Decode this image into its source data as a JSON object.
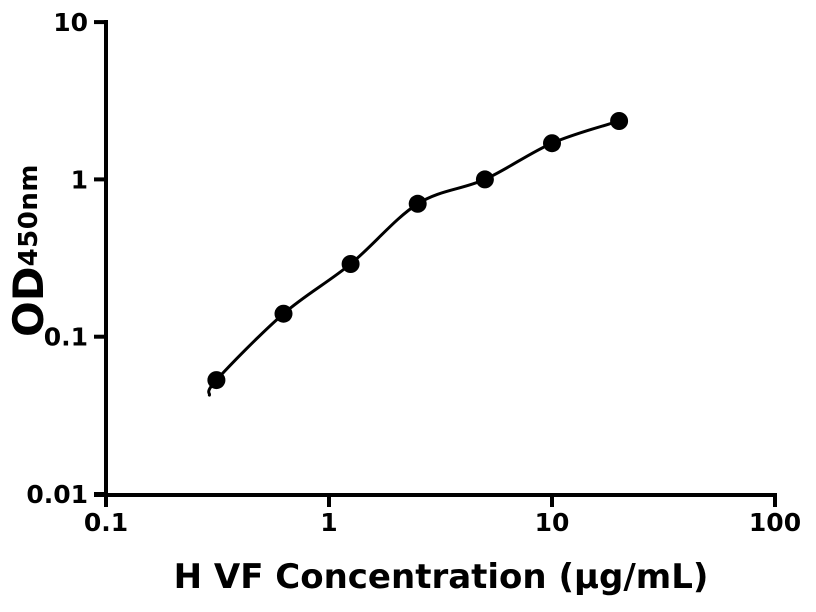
{
  "figure": {
    "background_color": "#ffffff",
    "ink_color": "#000000"
  },
  "chart_data": {
    "type": "scatter",
    "style": "filled black circles with smooth fitted standard-curve line",
    "title": "",
    "xlabel": "H VF Concentration (μg/mL)",
    "ylabel_main": "OD",
    "ylabel_sub": "450nm",
    "x_scale": "log10",
    "y_scale": "log10",
    "xlim": [
      0.1,
      100
    ],
    "ylim": [
      0.01,
      10
    ],
    "grid": false,
    "legend": "none",
    "x_ticks": [
      {
        "value": 0.1,
        "label": "0.1"
      },
      {
        "value": 1,
        "label": "1"
      },
      {
        "value": 10,
        "label": "10"
      },
      {
        "value": 100,
        "label": "100"
      }
    ],
    "y_ticks": [
      {
        "value": 0.01,
        "label": "0.01"
      },
      {
        "value": 0.1,
        "label": "0.1"
      },
      {
        "value": 1,
        "label": "1"
      },
      {
        "value": 10,
        "label": "10"
      }
    ],
    "series": [
      {
        "marker": "filled-circle",
        "line": "smooth-fit-curve",
        "color": "#000000",
        "points": [
          {
            "x": 0.3125,
            "y": 0.053
          },
          {
            "x": 0.625,
            "y": 0.14
          },
          {
            "x": 1.25,
            "y": 0.29
          },
          {
            "x": 2.5,
            "y": 0.7
          },
          {
            "x": 5,
            "y": 1.0
          },
          {
            "x": 10,
            "y": 1.7
          },
          {
            "x": 20,
            "y": 2.35
          }
        ]
      }
    ]
  }
}
